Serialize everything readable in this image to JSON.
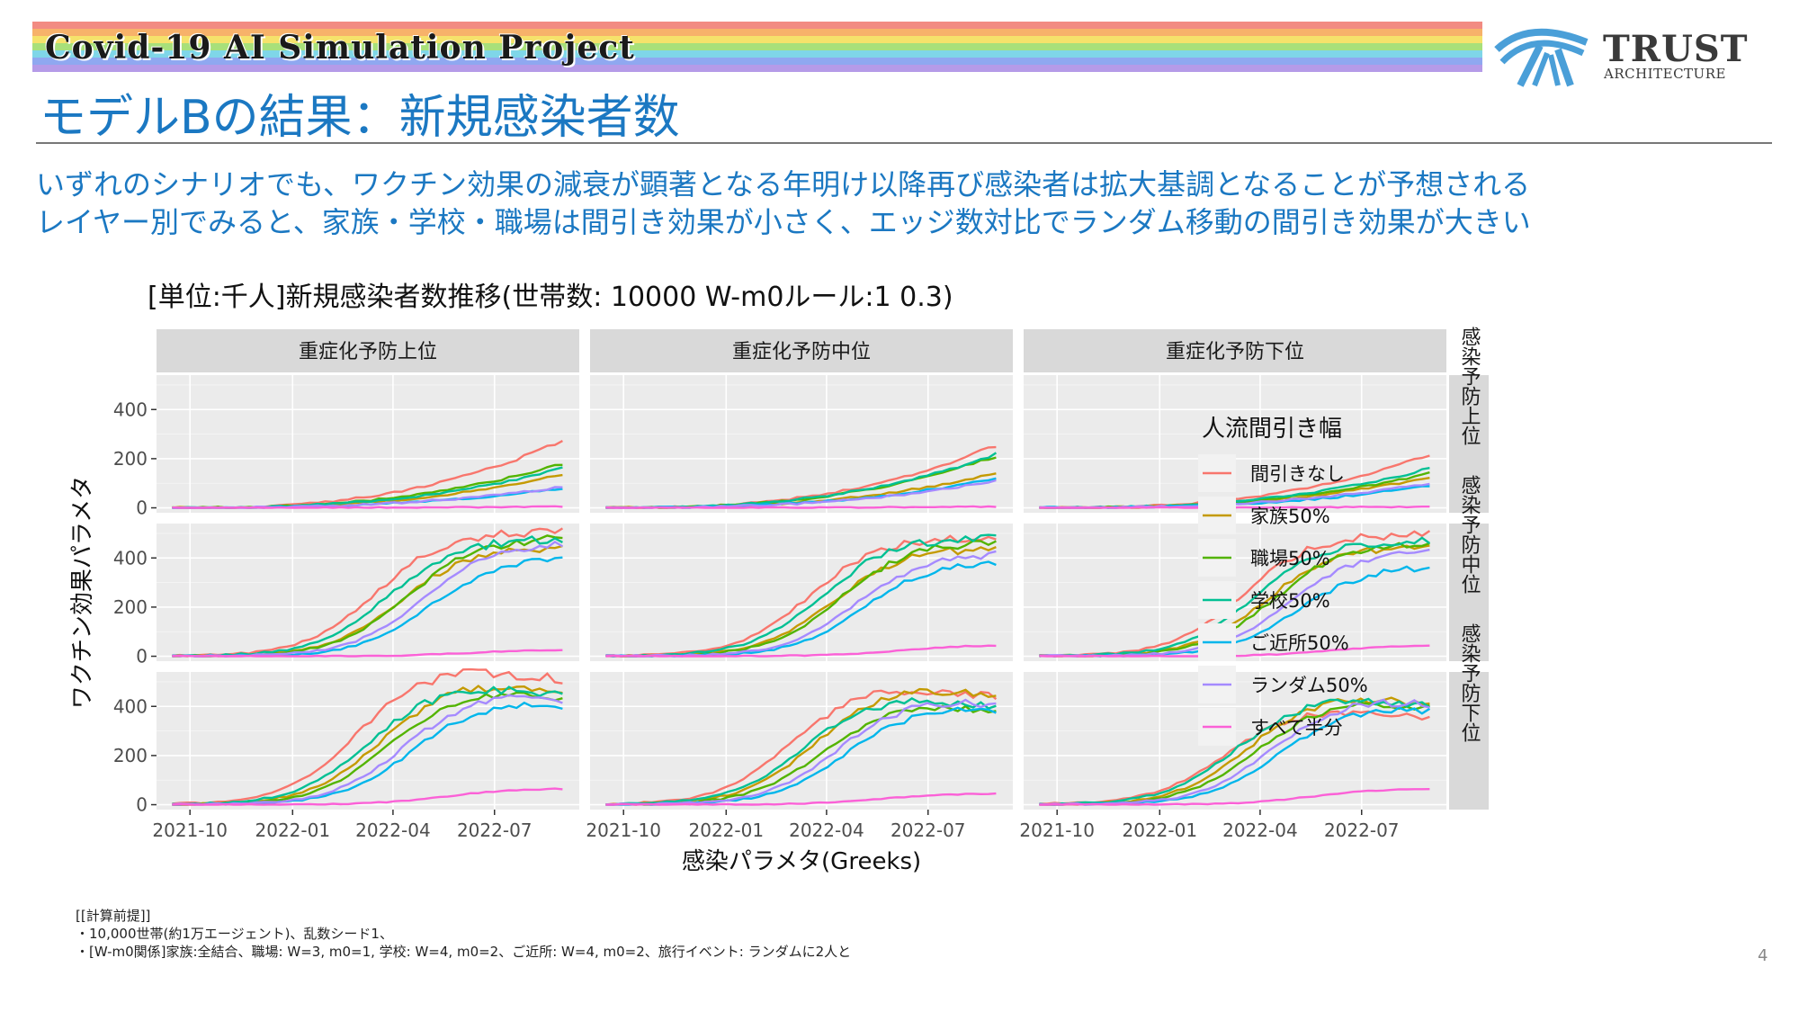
{
  "banner": {
    "text": "Covid-19 AI Simulation Project",
    "stripe_colors": [
      "#f28b82",
      "#f7b26a",
      "#f5e26b",
      "#a8e07a",
      "#7fd6e8",
      "#8fa8f0",
      "#b59be8"
    ]
  },
  "logo": {
    "name": "TRUST",
    "sub": "ARCHITECTURE",
    "mark_color": "#4a9fd8"
  },
  "title": "モデルBの結果：新規感染者数",
  "summary": {
    "line1": "いずれのシナリオでも、ワクチン効果の減衰が顕著となる年明け以降再び感染者は拡大基調となることが予想される",
    "line2": "レイヤー別でみると、家族・学校・職場は間引き効果が小さく、エッジ数対比でランダム移動の間引き効果が大きい"
  },
  "notes": {
    "line1": "[[計算前提]]",
    "line2": "・10,000世帯(約1万エージェント)、乱数シード1、",
    "line3": "・[W-m0関係]家族:全結合、職場: W=3, m0=1, 学校: W=4, m0=2、ご近所: W=4, m0=2、旅行イベント: ランダムに2人と"
  },
  "page_number": "4",
  "chart_data": {
    "type": "line",
    "title": "[単位:千人]新規感染者数推移(世帯数: 10000 W-m0ルール:1 0.3)",
    "xlabel": "感染パラメタ(Greeks)",
    "ylabel": "ワクチン効果パラメタ",
    "x_start": "2021-09-15",
    "x_end": "2022-08-31",
    "xlim": [
      "2021-09-01",
      "2022-09-15"
    ],
    "x_ticks": [
      "2021-10",
      "2022-01",
      "2022-04",
      "2022-07"
    ],
    "ylim": [
      -20,
      540
    ],
    "y_ticks": [
      0,
      200,
      400
    ],
    "col_facets": [
      "重症化予防上位",
      "重症化予防中位",
      "重症化予防下位"
    ],
    "row_facets": [
      "感染予防上位",
      "感染予防中位",
      "感染予防下位"
    ],
    "legend": {
      "title": "人流間引き幅",
      "placement": "right"
    },
    "series": [
      {
        "name": "間引きなし",
        "color": "#F8766D"
      },
      {
        "name": "家族50%",
        "color": "#C49A00"
      },
      {
        "name": "職場50%",
        "color": "#53B400"
      },
      {
        "name": "学校50%",
        "color": "#00C094"
      },
      {
        "name": "ご近所50%",
        "color": "#00B6EB"
      },
      {
        "name": "ランダム50%",
        "color": "#A58AFF"
      },
      {
        "name": "すべて半分",
        "color": "#FB61D7"
      }
    ],
    "panels": [
      {
        "row": 0,
        "col": 0,
        "final": [
          275,
          135,
          180,
          160,
          80,
          85,
          5
        ]
      },
      {
        "row": 0,
        "col": 1,
        "final": [
          255,
          140,
          210,
          220,
          120,
          110,
          5
        ]
      },
      {
        "row": 0,
        "col": 2,
        "final": [
          215,
          125,
          140,
          160,
          90,
          100,
          5
        ]
      },
      {
        "row": 1,
        "col": 0,
        "final": [
          495,
          430,
          470,
          465,
          395,
          450,
          25
        ]
      },
      {
        "row": 1,
        "col": 1,
        "final": [
          470,
          430,
          455,
          470,
          380,
          410,
          45
        ]
      },
      {
        "row": 1,
        "col": 2,
        "final": [
          485,
          440,
          450,
          460,
          360,
          420,
          45
        ]
      },
      {
        "row": 2,
        "col": 0,
        "final": [
          505,
          450,
          420,
          440,
          380,
          410,
          65
        ]
      },
      {
        "row": 2,
        "col": 1,
        "final": [
          435,
          430,
          370,
          395,
          360,
          390,
          45
        ]
      },
      {
        "row": 2,
        "col": 2,
        "final": [
          350,
          400,
          380,
          395,
          360,
          390,
          65
        ]
      }
    ]
  }
}
